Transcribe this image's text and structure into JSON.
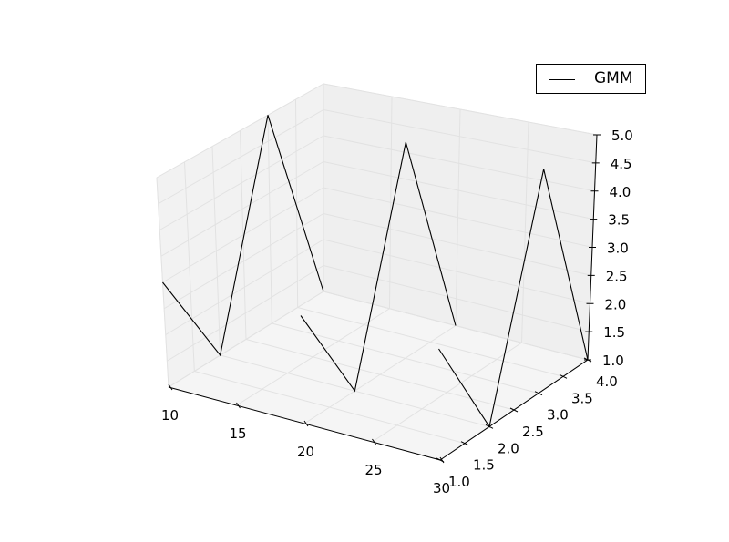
{
  "chart_data": {
    "type": "line",
    "projection": "3d",
    "title": "",
    "xlabel": "",
    "ylabel": "",
    "zlabel": "",
    "xlim": [
      10,
      30
    ],
    "ylim": [
      1,
      4
    ],
    "zlim": [
      1,
      5
    ],
    "xticks": [
      "10",
      "15",
      "20",
      "25",
      "30"
    ],
    "yticks": [
      "1.0",
      "1.5",
      "2.0",
      "2.5",
      "3.0",
      "3.5",
      "4.0"
    ],
    "zticks": [
      "1.0",
      "1.5",
      "2.0",
      "2.5",
      "3.0",
      "3.5",
      "4.0",
      "4.5",
      "5.0"
    ],
    "grid": true,
    "legend_position": "top-right",
    "series": [
      {
        "name": "GMM",
        "color": "#000000",
        "segments": [
          {
            "x": [
              10,
              10,
              10,
              10
            ],
            "y": [
              1,
              2,
              3,
              4
            ],
            "z": [
              3,
              1,
              5,
              1
            ]
          },
          {
            "x": [
              20,
              20,
              20,
              20
            ],
            "y": [
              1,
              2,
              3,
              4
            ],
            "z": [
              3,
              1,
              5,
              1
            ]
          },
          {
            "x": [
              30,
              30,
              30,
              30
            ],
            "y": [
              1,
              2,
              3,
              4
            ],
            "z": [
              3,
              1,
              5,
              1
            ]
          }
        ]
      }
    ]
  }
}
